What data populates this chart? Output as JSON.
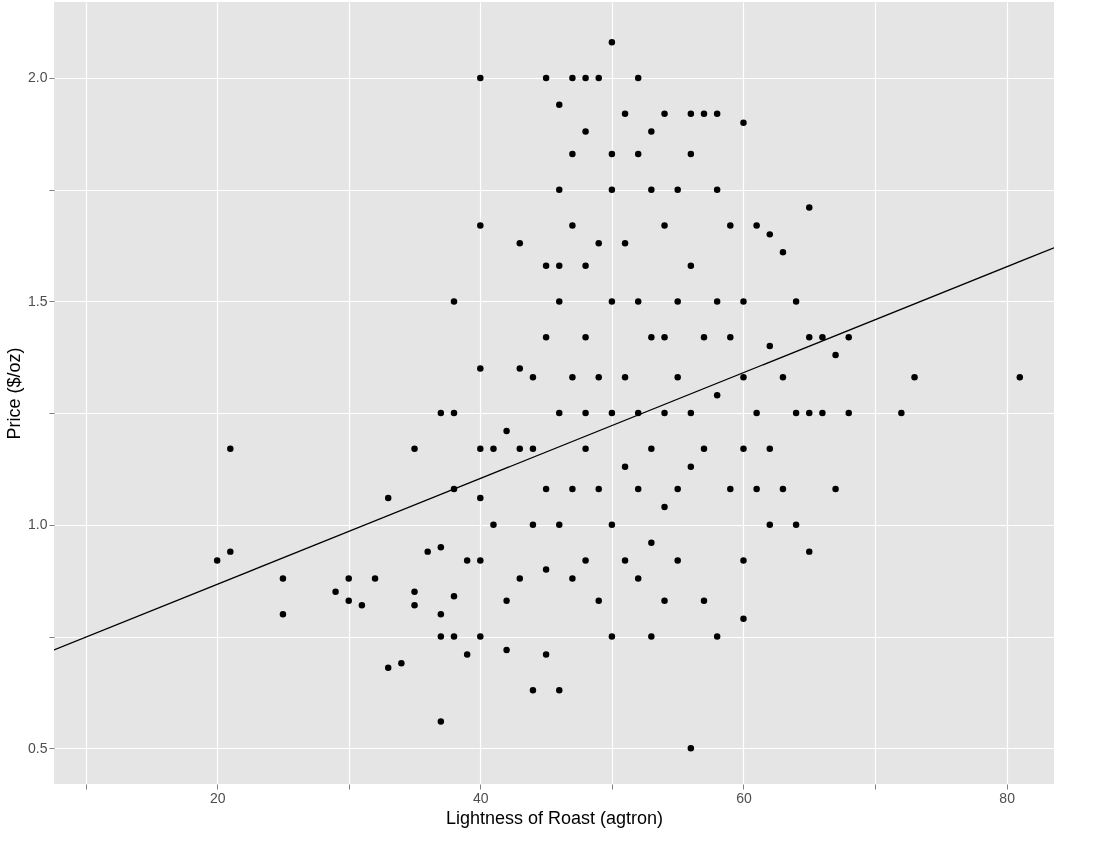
{
  "chart_data": {
    "type": "scatter",
    "xlabel": "Lightness of Roast (agtron)",
    "ylabel": "Price ($/oz)",
    "xlim": [
      7.6,
      83.6
    ],
    "ylim": [
      0.42,
      2.17
    ],
    "xticks": [
      {
        "value": 10,
        "label": null
      },
      20,
      {
        "value": 30,
        "label": null
      },
      40,
      {
        "value": 50,
        "label": null
      },
      60,
      {
        "value": 70,
        "label": null
      },
      80
    ],
    "yticks": [
      0.5,
      {
        "value": 0.75,
        "label": null
      },
      {
        "value": 1,
        "label": "1.0"
      },
      {
        "value": 1.25,
        "label": null
      },
      1.5,
      {
        "value": 1.75,
        "label": null
      },
      {
        "value": 2,
        "label": "2.0"
      }
    ],
    "grid": true,
    "series": [
      {
        "marker": "circle",
        "color": "#000000",
        "x": [
          20,
          21,
          21,
          25,
          25,
          29,
          30,
          30,
          31,
          32,
          33,
          33,
          34,
          35,
          35,
          35,
          36,
          37,
          37,
          37,
          37,
          37,
          38,
          38,
          38,
          38,
          38,
          39,
          39,
          40,
          40,
          40,
          40,
          40,
          40,
          40,
          41,
          41,
          42,
          42,
          42,
          43,
          43,
          43,
          43,
          44,
          44,
          44,
          44,
          45,
          45,
          45,
          45,
          45,
          45,
          46,
          46,
          46,
          46,
          46,
          46,
          46,
          47,
          47,
          47,
          47,
          47,
          47,
          48,
          48,
          48,
          48,
          48,
          48,
          48,
          49,
          49,
          49,
          49,
          49,
          50,
          50,
          50,
          50,
          50,
          50,
          50,
          51,
          51,
          51,
          51,
          51,
          52,
          52,
          52,
          52,
          52,
          52,
          53,
          53,
          53,
          53,
          53,
          53,
          54,
          54,
          54,
          54,
          54,
          54,
          55,
          55,
          55,
          55,
          55,
          56,
          56,
          56,
          56,
          56,
          56,
          57,
          57,
          57,
          57,
          58,
          58,
          58,
          58,
          58,
          59,
          59,
          59,
          60,
          60,
          60,
          60,
          60,
          60,
          61,
          61,
          61,
          62,
          62,
          62,
          62,
          63,
          63,
          63,
          64,
          64,
          64,
          65,
          65,
          65,
          65,
          66,
          66,
          67,
          67,
          68,
          68,
          72,
          73,
          81
        ],
        "values": [
          0.92,
          0.94,
          1.17,
          0.88,
          0.8,
          0.85,
          0.88,
          0.83,
          0.82,
          0.88,
          1.06,
          0.68,
          0.69,
          0.85,
          0.82,
          1.17,
          0.94,
          0.56,
          0.75,
          0.8,
          0.95,
          1.25,
          1.5,
          1.25,
          1.08,
          0.84,
          0.75,
          0.71,
          0.92,
          2.0,
          1.67,
          1.35,
          1.17,
          1.06,
          0.92,
          0.75,
          1.0,
          1.17,
          1.21,
          0.83,
          0.72,
          1.63,
          1.35,
          1.17,
          0.88,
          1.33,
          1.17,
          1.0,
          0.63,
          2.0,
          1.58,
          1.42,
          1.08,
          0.9,
          0.71,
          1.94,
          1.75,
          1.58,
          1.5,
          1.25,
          1.0,
          0.63,
          2.0,
          1.83,
          1.67,
          1.33,
          1.08,
          0.88,
          2.0,
          1.88,
          1.58,
          1.42,
          1.25,
          1.17,
          0.92,
          2.0,
          1.63,
          1.33,
          1.08,
          0.83,
          2.08,
          1.83,
          1.75,
          1.5,
          1.25,
          1.0,
          0.75,
          1.92,
          1.63,
          1.33,
          1.13,
          0.92,
          2.0,
          1.83,
          1.5,
          1.25,
          1.08,
          0.88,
          1.88,
          1.75,
          1.42,
          1.17,
          0.96,
          0.75,
          1.92,
          1.67,
          1.42,
          1.25,
          1.04,
          0.83,
          1.75,
          1.5,
          1.33,
          1.08,
          0.92,
          1.92,
          1.83,
          1.58,
          1.25,
          1.13,
          0.5,
          1.92,
          1.42,
          1.17,
          0.83,
          1.92,
          1.75,
          1.5,
          1.29,
          0.75,
          1.67,
          1.42,
          1.08,
          1.9,
          1.5,
          1.33,
          1.17,
          0.92,
          0.79,
          1.67,
          1.25,
          1.08,
          1.65,
          1.4,
          1.17,
          1.0,
          1.61,
          1.33,
          1.08,
          1.5,
          1.25,
          1.0,
          1.71,
          1.42,
          1.25,
          0.94,
          1.42,
          1.25,
          1.38,
          1.08,
          1.42,
          1.25,
          1.25,
          1.33,
          1.33
        ]
      },
      {
        "type": "line",
        "marker": "none",
        "color": "#000000",
        "x": [
          7.6,
          83.6
        ],
        "values": [
          0.72,
          1.62
        ]
      }
    ]
  }
}
